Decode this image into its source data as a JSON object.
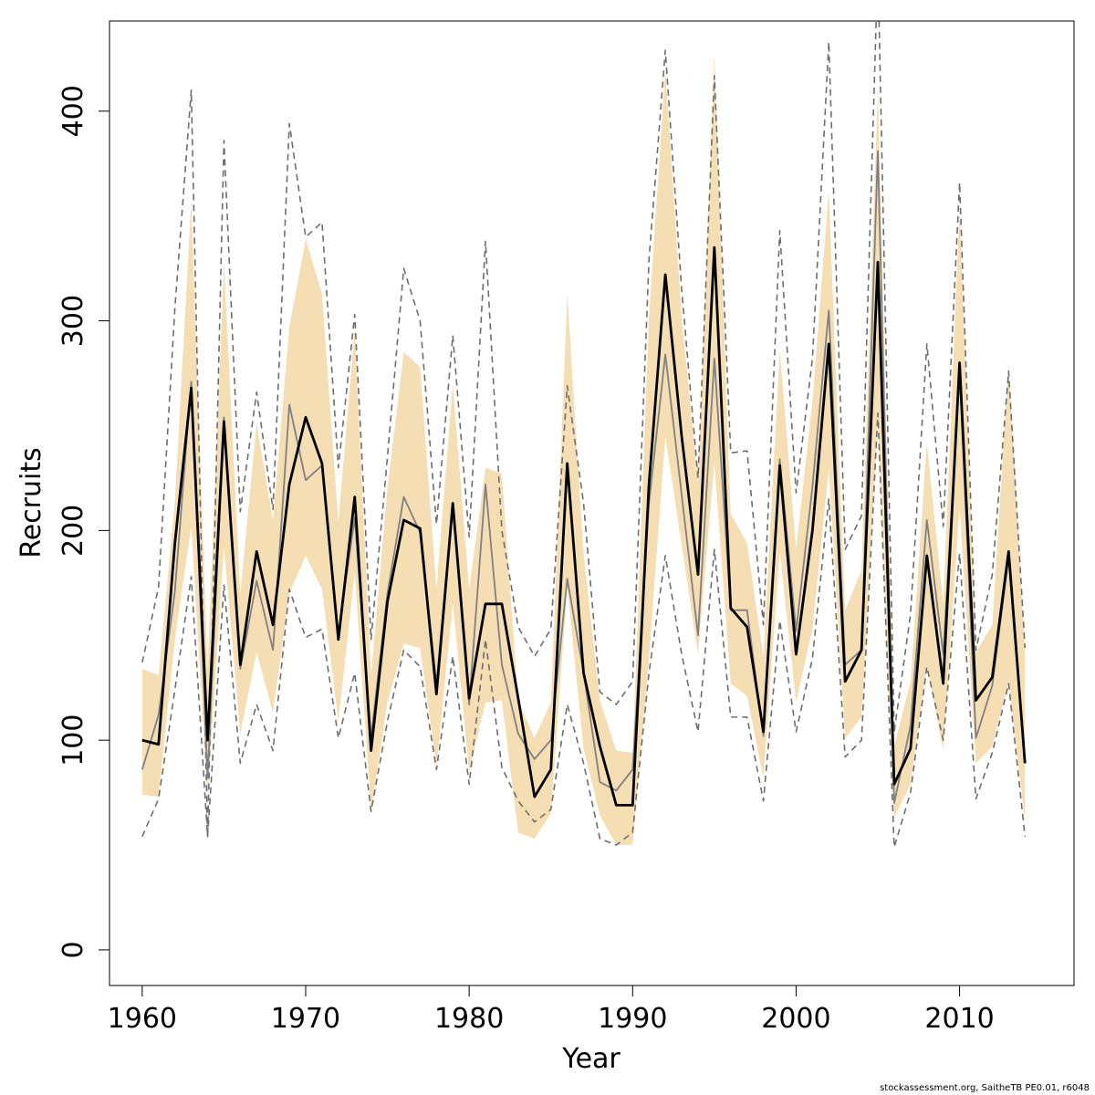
{
  "chart_data": {
    "type": "line",
    "xlabel": "Year",
    "ylabel": "Recruits",
    "xlim": [
      1958,
      2017
    ],
    "ylim": [
      -17,
      443
    ],
    "x_ticks": [
      1960,
      1970,
      1980,
      1990,
      2000,
      2010
    ],
    "y_ticks": [
      0,
      100,
      200,
      300,
      400
    ],
    "grid": false,
    "years": [
      1960,
      1961,
      1962,
      1963,
      1964,
      1965,
      1966,
      1967,
      1968,
      1969,
      1970,
      1971,
      1972,
      1973,
      1974,
      1975,
      1976,
      1977,
      1978,
      1979,
      1980,
      1981,
      1982,
      1983,
      1984,
      1985,
      1986,
      1987,
      1988,
      1989,
      1990,
      1991,
      1992,
      1993,
      1994,
      1995,
      1996,
      1997,
      1998,
      1999,
      2000,
      2001,
      2002,
      2003,
      2004,
      2005,
      2006,
      2007,
      2008,
      2009,
      2010,
      2011,
      2012,
      2013,
      2014
    ],
    "series": [
      {
        "role": "band-lower",
        "color": "#f5deb3",
        "values": [
          74,
          73,
          148,
          202,
          73,
          192,
          103,
          142,
          113,
          170,
          188,
          172,
          109,
          180,
          66,
          118,
          146,
          144,
          88,
          165,
          85,
          118,
          119,
          56,
          53,
          65,
          173,
          96,
          64,
          50,
          50,
          139,
          245,
          193,
          141,
          232,
          127,
          121,
          82,
          190,
          118,
          153,
          229,
          101,
          111,
          251,
          63,
          79,
          136,
          95,
          211,
          89,
          97,
          128,
          61
        ]
      },
      {
        "role": "band-upper",
        "color": "#f5deb3",
        "values": [
          134,
          131,
          214,
          357,
          134,
          328,
          170,
          251,
          205,
          297,
          339,
          313,
          204,
          296,
          131,
          220,
          285,
          278,
          172,
          270,
          172,
          230,
          227,
          119,
          101,
          118,
          313,
          189,
          119,
          95,
          94,
          302,
          420,
          302,
          223,
          427,
          208,
          194,
          140,
          286,
          191,
          262,
          362,
          162,
          181,
          411,
          97,
          128,
          242,
          165,
          354,
          142,
          155,
          280,
          143
        ]
      },
      {
        "role": "bound-dashed-lower",
        "color": "#6e6e6e",
        "values": [
          54,
          72,
          124,
          178,
          54,
          174,
          89,
          117,
          95,
          172,
          149,
          153,
          101,
          132,
          66,
          109,
          143,
          135,
          86,
          140,
          79,
          148,
          87,
          71,
          61,
          67,
          117,
          89,
          53,
          50,
          56,
          132,
          188,
          141,
          104,
          191,
          111,
          111,
          71,
          157,
          104,
          139,
          215,
          92,
          100,
          256,
          49,
          75,
          135,
          100,
          189,
          72,
          94,
          127,
          54
        ]
      },
      {
        "role": "bound-dashed-upper",
        "color": "#6e6e6e",
        "values": [
          137,
          173,
          306,
          410,
          54,
          386,
          209,
          266,
          210,
          394,
          340,
          347,
          230,
          303,
          148,
          235,
          325,
          300,
          203,
          293,
          197,
          338,
          200,
          154,
          140,
          153,
          269,
          213,
          123,
          117,
          128,
          329,
          429,
          315,
          225,
          417,
          237,
          238,
          155,
          343,
          218,
          282,
          433,
          191,
          207,
          470,
          104,
          160,
          289,
          202,
          366,
          143,
          179,
          276,
          144
        ]
      },
      {
        "role": "alternate-estimate",
        "color": "#808080",
        "values": [
          86,
          112,
          171,
          271,
          82,
          254,
          134,
          176,
          143,
          260,
          224,
          231,
          151,
          206,
          101,
          170,
          216,
          199,
          127,
          212,
          117,
          222,
          136,
          103,
          91,
          100,
          177,
          132,
          80,
          76,
          86,
          213,
          284,
          217,
          150,
          282,
          162,
          162,
          102,
          234,
          152,
          221,
          305,
          136,
          143,
          381,
          70,
          107,
          205,
          141,
          276,
          101,
          126,
          187,
          89
        ]
      },
      {
        "role": "main-estimate",
        "color": "#000000",
        "values": [
          100,
          98,
          194,
          268,
          100,
          252,
          136,
          190,
          155,
          222,
          254,
          232,
          148,
          216,
          95,
          166,
          205,
          201,
          122,
          213,
          120,
          165,
          165,
          120,
          73,
          86,
          232,
          132,
          97,
          69,
          69,
          222,
          322,
          245,
          179,
          335,
          163,
          154,
          104,
          231,
          141,
          200,
          289,
          128,
          143,
          328,
          79,
          96,
          188,
          127,
          280,
          119,
          130,
          190,
          89
        ]
      }
    ]
  },
  "footer_text": "stockassessment.org, SaitheTB  PE0.01, r6048"
}
